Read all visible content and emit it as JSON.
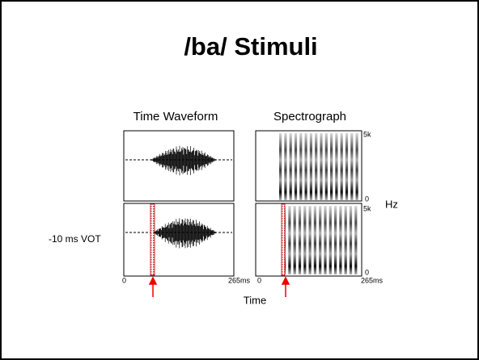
{
  "title": "/ba/ Stimuli",
  "waveform": {
    "title": "Time Waveform",
    "x_start": "0",
    "x_end": "265ms"
  },
  "spectrograph": {
    "title": "Spectrograph",
    "freq_top": [
      "5k",
      "5k"
    ],
    "freq_bottom": [
      "0",
      "0"
    ],
    "freq_unit": "Hz",
    "x_start": "0",
    "x_end": "265ms"
  },
  "row_label": "-10 ms VOT",
  "x_axis_label": "Time"
}
